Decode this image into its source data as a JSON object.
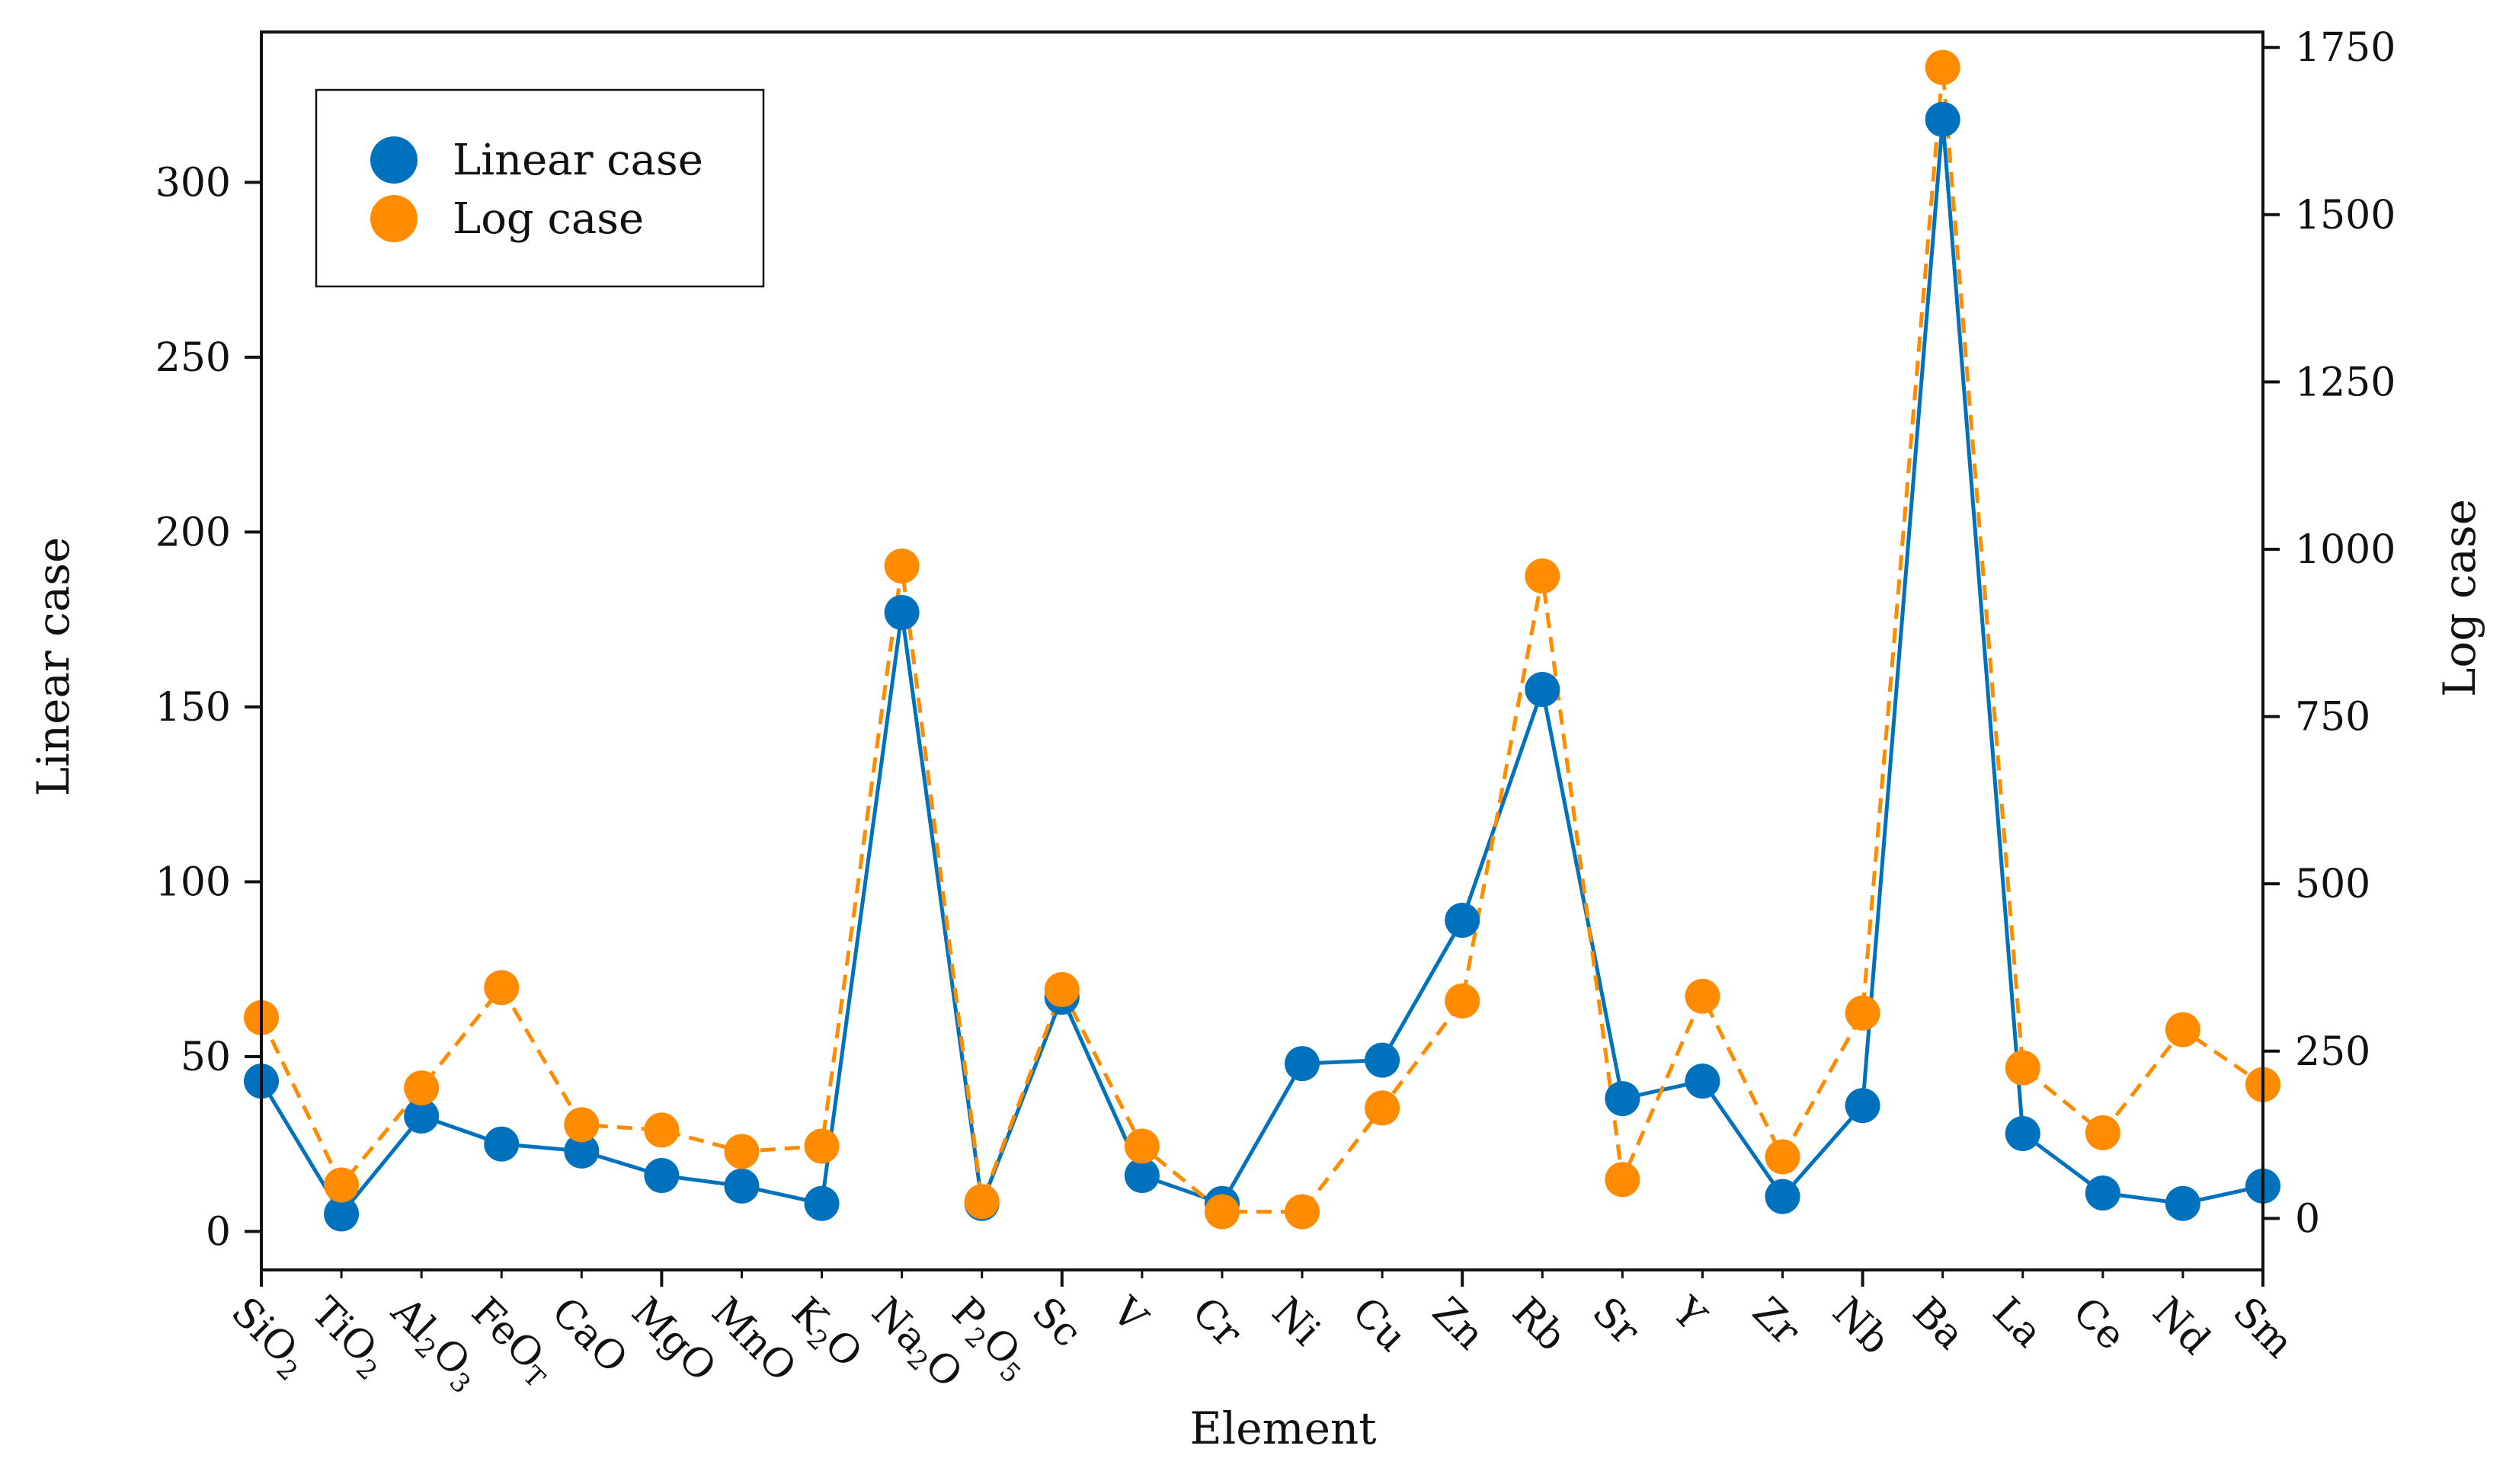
{
  "chart_data": {
    "type": "line",
    "xlabel": "Element",
    "ylabel": "Linear case",
    "y2label": "Log case",
    "categories": [
      "SiO2",
      "TiO2",
      "Al2O3",
      "FeOT",
      "CaO",
      "MgO",
      "MnO",
      "K2O",
      "Na2O",
      "P2O5",
      "Sc",
      "V",
      "Cr",
      "Ni",
      "Cu",
      "Zn",
      "Rb",
      "Sr",
      "Y",
      "Zr",
      "Nb",
      "Ba",
      "La",
      "Ce",
      "Nd",
      "Sm"
    ],
    "category_labels": [
      [
        {
          "t": "SiO"
        },
        {
          "t": "2",
          "sub": true
        }
      ],
      [
        {
          "t": "TiO"
        },
        {
          "t": "2",
          "sub": true
        }
      ],
      [
        {
          "t": "Al"
        },
        {
          "t": "2",
          "sub": true
        },
        {
          "t": "O"
        },
        {
          "t": "3",
          "sub": true
        }
      ],
      [
        {
          "t": "FeO"
        },
        {
          "t": "T",
          "sub": true
        }
      ],
      [
        {
          "t": "CaO"
        }
      ],
      [
        {
          "t": "MgO"
        }
      ],
      [
        {
          "t": "MnO"
        }
      ],
      [
        {
          "t": "K"
        },
        {
          "t": "2",
          "sub": true
        },
        {
          "t": "O"
        }
      ],
      [
        {
          "t": "Na"
        },
        {
          "t": "2",
          "sub": true
        },
        {
          "t": "O"
        }
      ],
      [
        {
          "t": "P"
        },
        {
          "t": "2",
          "sub": true
        },
        {
          "t": "O"
        },
        {
          "t": "5",
          "sub": true
        }
      ],
      [
        {
          "t": "Sc"
        }
      ],
      [
        {
          "t": "V"
        }
      ],
      [
        {
          "t": "Cr"
        }
      ],
      [
        {
          "t": "Ni"
        }
      ],
      [
        {
          "t": "Cu"
        }
      ],
      [
        {
          "t": "Zn"
        }
      ],
      [
        {
          "t": "Rb"
        }
      ],
      [
        {
          "t": "Sr"
        }
      ],
      [
        {
          "t": "Y"
        }
      ],
      [
        {
          "t": "Zr"
        }
      ],
      [
        {
          "t": "Nb"
        }
      ],
      [
        {
          "t": "Ba"
        }
      ],
      [
        {
          "t": "La"
        }
      ],
      [
        {
          "t": "Ce"
        }
      ],
      [
        {
          "t": "Nd"
        }
      ],
      [
        {
          "t": "Sm"
        }
      ]
    ],
    "y_left": {
      "range": [
        -11,
        343
      ],
      "ticks": [
        0,
        50,
        100,
        150,
        200,
        250,
        300
      ]
    },
    "y_right": {
      "range": [
        -77,
        1773
      ],
      "ticks": [
        0,
        250,
        500,
        750,
        1000,
        1250,
        1500,
        1750
      ],
      "tick_labels": [
        "0",
        "250",
        "500",
        "750",
        "1000",
        "1250",
        "1500",
        "1750"
      ]
    },
    "x_ticks_major_every": 5,
    "series": [
      {
        "name": "Linear case",
        "axis": "left",
        "color": "#0072BD",
        "line_style": "solid",
        "values": [
          43,
          5,
          33,
          25,
          23,
          16,
          13,
          8,
          177,
          8,
          67,
          16,
          8,
          48,
          49,
          89,
          155,
          38,
          43,
          10,
          36,
          318,
          28,
          11,
          8,
          13
        ]
      },
      {
        "name": "Log case",
        "axis": "right",
        "color": "#FF8C00",
        "line_style": "dashed",
        "values": [
          300,
          50,
          195,
          345,
          140,
          132,
          100,
          108,
          975,
          25,
          342,
          108,
          10,
          10,
          165,
          325,
          960,
          58,
          332,
          92,
          307,
          1720,
          225,
          128,
          282,
          200
        ]
      }
    ],
    "legend": {
      "position": "top-left",
      "entries": [
        "Linear case",
        "Log case"
      ]
    }
  }
}
